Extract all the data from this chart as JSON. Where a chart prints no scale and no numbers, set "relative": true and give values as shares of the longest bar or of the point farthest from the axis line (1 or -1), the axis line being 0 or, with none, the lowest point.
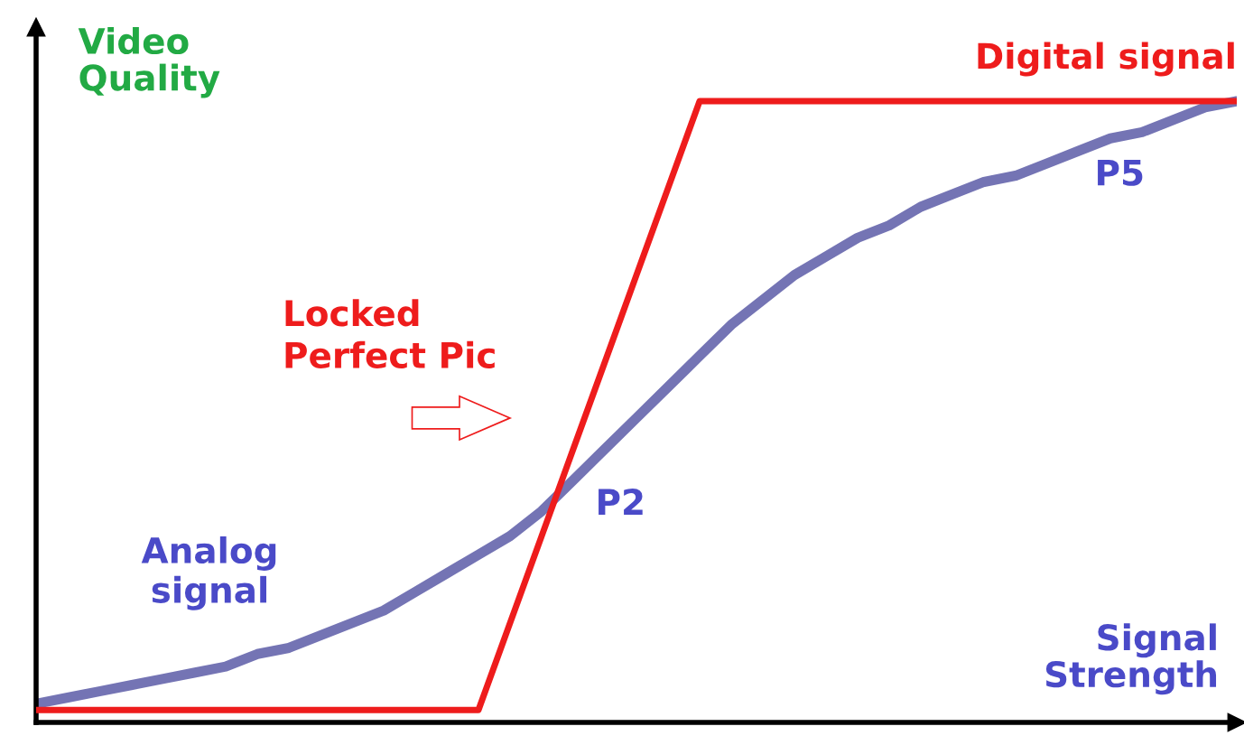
{
  "chart_data": {
    "type": "line",
    "relative": true,
    "xlabel": "Signal Strength",
    "ylabel": "Video Quality",
    "legend": false,
    "grid": false,
    "categories": [
      null,
      null,
      null,
      null,
      null,
      null,
      null,
      null,
      null,
      null,
      null,
      null,
      null,
      null,
      null,
      null,
      null,
      null,
      null,
      null,
      null,
      null,
      null,
      null,
      null,
      null,
      null,
      null,
      null,
      null,
      null,
      null,
      null,
      null,
      null,
      null,
      null,
      null,
      null
    ],
    "series": [
      {
        "name": "Digital signal",
        "color": "#ee1c1c",
        "values": [
          0.02,
          0.02,
          0.02,
          0.02,
          0.02,
          0.02,
          0.02,
          0.02,
          0.02,
          0.02,
          0.02,
          0.02,
          0.02,
          0.02,
          0.02,
          0.16,
          0.3,
          0.44,
          0.58,
          0.72,
          0.86,
          1.0,
          1.0,
          1.0,
          1.0,
          1.0,
          1.0,
          1.0,
          1.0,
          1.0,
          1.0,
          1.0,
          1.0,
          1.0,
          1.0,
          1.0,
          1.0,
          1.0,
          1.0
        ]
      },
      {
        "name": "Analog signal",
        "color": "#7474b4",
        "values": [
          0.03,
          0.04,
          0.05,
          0.06,
          0.07,
          0.08,
          0.09,
          0.11,
          0.12,
          0.14,
          0.16,
          0.18,
          0.21,
          0.24,
          0.27,
          0.3,
          0.34,
          0.39,
          0.44,
          0.49,
          0.54,
          0.59,
          0.64,
          0.68,
          0.72,
          0.75,
          0.78,
          0.8,
          0.83,
          0.85,
          0.87,
          0.88,
          0.9,
          0.92,
          0.94,
          0.95,
          0.97,
          0.99,
          1.0
        ]
      }
    ],
    "annotations": [
      "Locked\nPerfect Pic",
      "P2",
      "P5"
    ]
  }
}
